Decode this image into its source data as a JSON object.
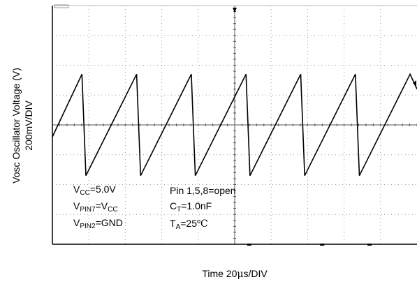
{
  "chart_data": {
    "type": "line",
    "title": "",
    "ylabel_line1": "Vosc Oscillator Voltage (V)",
    "ylabel_line2": "200mV/DIV",
    "xlabel_prefix": "Time 20",
    "xlabel_mu": "μ",
    "xlabel_suffix": "s/DIV",
    "grid": true,
    "x_divisions": 10,
    "y_divisions": 8,
    "xlim_div": [
      0,
      10
    ],
    "ylim_div": [
      -4,
      4
    ],
    "waveform": "sawtooth",
    "series": [
      {
        "x_div": [
          0,
          0.81,
          0.92,
          2.31,
          2.42,
          3.81,
          3.92,
          5.31,
          5.42,
          6.81,
          6.92,
          8.31,
          8.42,
          9.81,
          10
        ],
        "y_div": [
          -0.4,
          1.7,
          -1.7,
          1.7,
          -1.7,
          1.7,
          -1.7,
          1.7,
          -1.7,
          1.7,
          -1.7,
          1.7,
          -1.7,
          1.7,
          1.2
        ]
      }
    ],
    "annotations": {
      "vcc": {
        "main": "V",
        "sub": "CC",
        "rest": "=5.0V"
      },
      "vpin7": {
        "main": "V",
        "sub": "PIN7",
        "rest": "=V",
        "sub2": "CC"
      },
      "vpin2": {
        "main": "V",
        "sub": "PIN2",
        "rest": "=GND"
      },
      "pins": "Pin 1,5,8=open",
      "ct": {
        "main": "C",
        "sub": "T",
        "rest": "=1.0nF"
      },
      "ta": {
        "main": "T",
        "sub": "A",
        "rest": "=25",
        "deg": "o",
        "unit": "C"
      }
    }
  }
}
